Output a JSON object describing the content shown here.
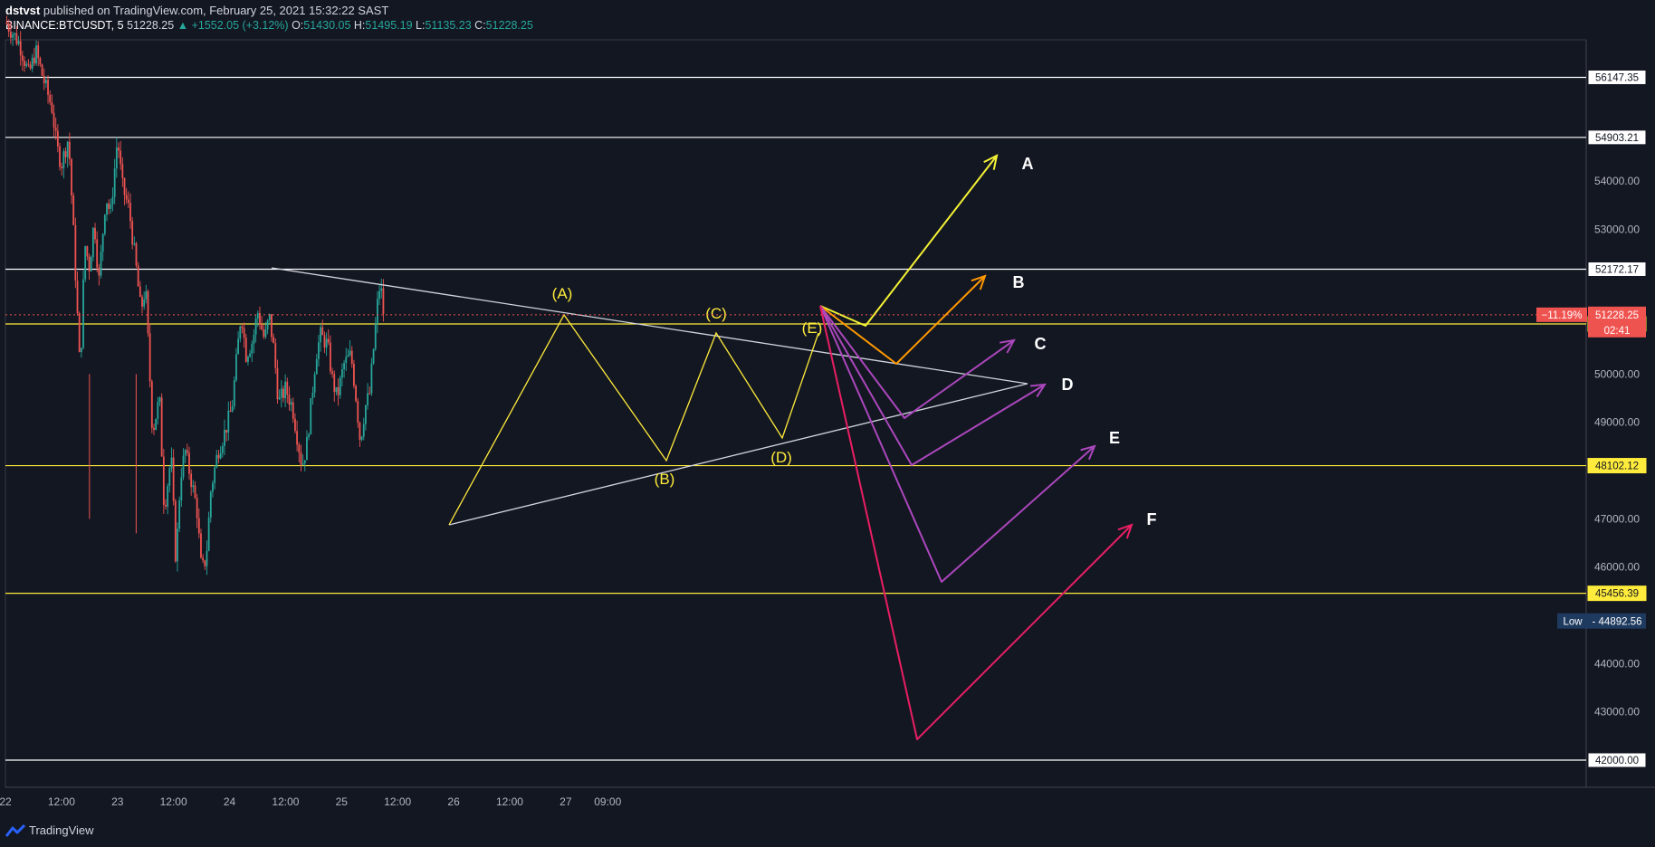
{
  "header": {
    "author": "dstvst",
    "published": "published on TradingView.com, February 25, 2021 15:32:22 SAST",
    "symbol": "BINANCE:BTCUSDT, 5",
    "last": "51228.25",
    "up_arrow": "▲",
    "change": "+1552.05 (+3.12%)",
    "o_label": "O:",
    "o_value": "51430.05",
    "h_label": "H:",
    "h_value": "51495.19",
    "l_label": "L:",
    "l_value": "51135.23",
    "c_label": "C:",
    "c_value": "51228.25"
  },
  "footer": {
    "brand": "TradingView",
    "brand_icon": "tradingview-logo-icon"
  },
  "colors": {
    "background": "#131722",
    "candle_up": "#26a69a",
    "candle_down": "#ef5350",
    "level_white": "#ffffff",
    "level_yellow": "#ffeb3b",
    "wave": "#ffeb3b",
    "triangle": "#d1d4dc",
    "path_a": "#f5f234",
    "path_b": "#ff9800",
    "path_purple": "#ab47bc",
    "path_f": "#e91e63",
    "price_tag_red": "#ef5350"
  },
  "chart_data": {
    "type": "candlestick",
    "title": "",
    "ylim": [
      41600,
      57300
    ],
    "y_ticks": [
      "54000.00",
      "53000.00",
      "50000.00",
      "49000.00",
      "47000.00",
      "46000.00",
      "44000.00",
      "43000.00",
      "42000.00"
    ],
    "x_ticks": [
      "22",
      "12:00",
      "23",
      "12:00",
      "24",
      "12:00",
      "25",
      "12:00",
      "26",
      "12:00",
      "27",
      "09:00"
    ],
    "x_range": [
      "2021-02-22 00:00",
      "2021-02-27 16:00"
    ],
    "horizontal_levels": [
      {
        "value": 56147.35,
        "label": "56147.35",
        "color": "white"
      },
      {
        "value": 54903.21,
        "label": "54903.21",
        "color": "white"
      },
      {
        "value": 52172.17,
        "label": "52172.17",
        "color": "white"
      },
      {
        "value": 51037.66,
        "label": "51037.66",
        "color": "yellow"
      },
      {
        "value": 48102.12,
        "label": "48102.12",
        "color": "yellow"
      },
      {
        "value": 45456.39,
        "label": "45456.39",
        "color": "yellow"
      },
      {
        "value": 42000.0,
        "label": "42000.00",
        "color": "white"
      }
    ],
    "last_price": {
      "value": 51228.25,
      "label": "51228.25",
      "pct": "−11.19%",
      "countdown": "02:41"
    },
    "low_marker": {
      "label": "Low",
      "value": "44892.56"
    },
    "price_path": [
      [
        0,
        57300
      ],
      [
        3,
        56850
      ],
      [
        5,
        56200
      ],
      [
        6.5,
        56700
      ],
      [
        8,
        56150
      ],
      [
        10,
        55500
      ],
      [
        11,
        54700
      ],
      [
        12,
        54350
      ],
      [
        13.5,
        54900
      ],
      [
        14.5,
        53100
      ],
      [
        16,
        50000
      ],
      [
        17,
        52700
      ],
      [
        18,
        52200
      ],
      [
        19,
        53200
      ],
      [
        20,
        51900
      ],
      [
        21.5,
        53700
      ],
      [
        22.5,
        53300
      ],
      [
        24,
        54900
      ],
      [
        25,
        53900
      ],
      [
        26.5,
        53400
      ],
      [
        28,
        52200
      ],
      [
        29,
        51300
      ],
      [
        30,
        51800
      ],
      [
        31.5,
        48800
      ],
      [
        33,
        49500
      ],
      [
        34,
        47200
      ],
      [
        35.5,
        48300
      ],
      [
        36.5,
        46100
      ],
      [
        37.5,
        47900
      ],
      [
        38.5,
        48400
      ],
      [
        40,
        47700
      ],
      [
        41,
        47200
      ],
      [
        42,
        45900
      ],
      [
        43,
        46200
      ],
      [
        44,
        47600
      ],
      [
        45.5,
        48400
      ],
      [
        47,
        48800
      ],
      [
        48.5,
        49300
      ],
      [
        49.5,
        50300
      ],
      [
        50.5,
        51300
      ],
      [
        51.5,
        50400
      ],
      [
        53,
        50700
      ],
      [
        54,
        51300
      ],
      [
        55.5,
        50700
      ],
      [
        56.5,
        51200
      ],
      [
        57.5,
        50500
      ],
      [
        58.5,
        49400
      ],
      [
        60,
        49700
      ],
      [
        61.5,
        49300
      ],
      [
        62.5,
        48700
      ],
      [
        63.5,
        48100
      ],
      [
        64.5,
        48500
      ],
      [
        65.5,
        49400
      ],
      [
        66.5,
        50400
      ],
      [
        67.5,
        50800
      ],
      [
        69,
        50600
      ],
      [
        70,
        49900
      ],
      [
        71,
        49500
      ],
      [
        72.5,
        50200
      ],
      [
        74,
        50400
      ],
      [
        75,
        49600
      ],
      [
        76,
        48600
      ],
      [
        77,
        49300
      ],
      [
        78,
        49600
      ],
      [
        79,
        50700
      ],
      [
        80,
        51800
      ],
      [
        80.5,
        51700
      ],
      [
        81,
        51228
      ]
    ],
    "wave_labels": [
      {
        "label": "(A)",
        "hour": 49.5,
        "price": 51400
      },
      {
        "label": "(B)",
        "hour": 59.5,
        "price": 47900
      },
      {
        "label": "(C)",
        "hour": 63.5,
        "price": 51000
      },
      {
        "label": "(D)",
        "hour": 70.5,
        "price": 48600
      },
      {
        "label": "(E)",
        "hour": 72.5,
        "price": 50800
      }
    ],
    "scenario_labels": [
      "A",
      "B",
      "C",
      "D",
      "E",
      "F"
    ]
  }
}
